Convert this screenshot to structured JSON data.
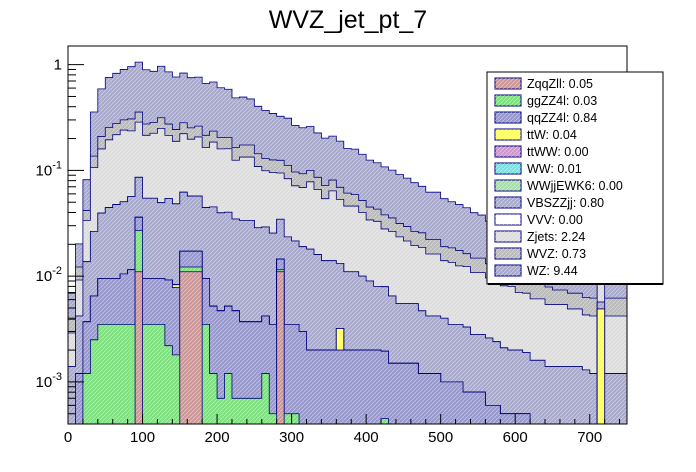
{
  "chart_data": {
    "type": "bar",
    "title": "WVZ_jet_pt_7",
    "xlabel": "",
    "ylabel": "",
    "stacked": true,
    "log_y": true,
    "grid": false,
    "legend_position": "top-right",
    "xlim": [
      0,
      750
    ],
    "ylim": [
      0.0004,
      1.5
    ],
    "bin_width": 10,
    "x_ticks": [
      0,
      100,
      200,
      300,
      400,
      500,
      600,
      700
    ],
    "x_tick_labels": [
      "0",
      "100",
      "200",
      "300",
      "400",
      "500",
      "600",
      "700"
    ],
    "y_ticks": [
      0.001,
      0.01,
      0.1,
      1
    ],
    "y_tick_labels": [
      "10^-3",
      "10^-2",
      "10^-1",
      "1"
    ],
    "legend": [
      {
        "name": "ZqqZll",
        "label": "ZqqZll: 0.05",
        "color": "#cc9999"
      },
      {
        "name": "ggZZ4l",
        "label": "ggZZ4l: 0.03",
        "color": "#80e080"
      },
      {
        "name": "qqZZ4l",
        "label": "qqZZ4l: 0.84",
        "color": "#9999cc"
      },
      {
        "name": "ttW",
        "label": "ttW: 0.04",
        "color": "#ffff66"
      },
      {
        "name": "ttWW",
        "label": "ttWW: 0.00",
        "color": "#cc99cc"
      },
      {
        "name": "WW",
        "label": "WW: 0.01",
        "color": "#80e0e0"
      },
      {
        "name": "WWjjEWK6",
        "label": "WWjjEWK6: 0.00",
        "color": "#aaddaa"
      },
      {
        "name": "VBSZZjj",
        "label": "VBSZZjj: 0.80",
        "color": "#aaaacc"
      },
      {
        "name": "VVV",
        "label": "VVV: 0.00",
        "color": "#ffffff"
      },
      {
        "name": "Zjets",
        "label": "Zjets: 2.24",
        "color": "#dddddd"
      },
      {
        "name": "WVZ",
        "label": "WVZ: 0.73",
        "color": "#bbbbbb"
      },
      {
        "name": "WZ",
        "label": "WZ: 9.44",
        "color": "#aaaacc"
      }
    ],
    "bin_edges_start": 0,
    "series": [
      {
        "name": "ZqqZll",
        "color": "#cc9999",
        "values": [
          0,
          0,
          0,
          0,
          0,
          0,
          0,
          0,
          0,
          0.011,
          0,
          0,
          0,
          0,
          0,
          0.011,
          0.011,
          0.011,
          0,
          0,
          0,
          0,
          0,
          0,
          0,
          0,
          0,
          0,
          0.011,
          0,
          0,
          0,
          0,
          0,
          0,
          0,
          0,
          0,
          0,
          0,
          0,
          0,
          0,
          0,
          0,
          0,
          0,
          0,
          0,
          0,
          0,
          0,
          0,
          0,
          0,
          0,
          0,
          0,
          0,
          0,
          0,
          0,
          0,
          0,
          0,
          0,
          0,
          0,
          0,
          0,
          0,
          0,
          0,
          0,
          0
        ]
      },
      {
        "name": "ggZZ4l",
        "color": "#80e080",
        "values": [
          0,
          0,
          0.0012,
          0.0025,
          0.0035,
          0.0035,
          0.0035,
          0.0035,
          0.0035,
          0.016,
          0.0035,
          0.0035,
          0.0035,
          0.0022,
          0.0018,
          0.0012,
          0.0012,
          0.0012,
          0.0035,
          0.0012,
          0.0007,
          0.0012,
          0.0007,
          0.0007,
          0.0007,
          0.0007,
          0.0012,
          0.0005,
          0.0005,
          0.0005,
          0.0005,
          0,
          0,
          0,
          0,
          0,
          0,
          0,
          0,
          0,
          0,
          0,
          0.00045,
          0,
          0,
          0,
          0,
          0,
          0,
          0,
          0,
          0,
          0,
          0,
          0,
          0,
          0,
          0,
          0,
          0,
          0,
          0,
          0,
          0,
          0,
          0,
          0,
          0,
          0,
          0,
          0,
          0,
          0,
          0,
          0
        ]
      },
      {
        "name": "qqZZ4l",
        "color": "#9999cc",
        "values": [
          0.0004,
          0.0012,
          0.0025,
          0.004,
          0.006,
          0.006,
          0.006,
          0.007,
          0.008,
          0.009,
          0.006,
          0.006,
          0.006,
          0.007,
          0.006,
          0.005,
          0.005,
          0.005,
          0.006,
          0.004,
          0.004,
          0.004,
          0.004,
          0.003,
          0.003,
          0.003,
          0.003,
          0.003,
          0.003,
          0.003,
          0.003,
          0.003,
          0.002,
          0.002,
          0.002,
          0.002,
          0.002,
          0.002,
          0.002,
          0.002,
          0.002,
          0.002,
          0.0015,
          0.0015,
          0.0015,
          0.0015,
          0.0015,
          0.0012,
          0.0012,
          0.0012,
          0.001,
          0.001,
          0.001,
          0.0008,
          0.0008,
          0.0008,
          0.0006,
          0.0006,
          0.0005,
          0.0005,
          0.0005,
          0.0005,
          0.0004,
          0.0004,
          0.0004,
          0.0004,
          0.0004,
          0.0004,
          0.0004,
          0.0004,
          0.0004,
          0.0004,
          0.0004,
          0.0004,
          0.0004
        ]
      },
      {
        "name": "ttW",
        "color": "#ffff66",
        "values": [
          0,
          0,
          0,
          0,
          0,
          0,
          0,
          0,
          0,
          0,
          0,
          0,
          0,
          0,
          0.0005,
          0,
          0,
          0,
          0,
          0,
          0,
          0,
          0,
          0,
          0,
          0,
          0,
          0,
          0,
          0,
          0,
          0,
          0,
          0,
          0,
          0,
          0.0012,
          0,
          0,
          0,
          0,
          0,
          0,
          0,
          0,
          0,
          0,
          0,
          0,
          0,
          0,
          0,
          0,
          0,
          0,
          0,
          0,
          0,
          0,
          0,
          0,
          0,
          0,
          0,
          0,
          0,
          0,
          0,
          0,
          0,
          0,
          0.0045,
          0,
          0,
          0
        ]
      },
      {
        "name": "ttWW",
        "color": "#cc99cc",
        "values": [
          0,
          0,
          0,
          0,
          0,
          0,
          0,
          0,
          0,
          0,
          0,
          0,
          0,
          0,
          0,
          0,
          0,
          0,
          0,
          0,
          0,
          0,
          0,
          0,
          0,
          0,
          0,
          0,
          0,
          0,
          0,
          0,
          0,
          0,
          0,
          0,
          0,
          0,
          0,
          0,
          0,
          0,
          0,
          0,
          0,
          0,
          0,
          0,
          0,
          0,
          0,
          0,
          0,
          0,
          0,
          0,
          0,
          0,
          0,
          0,
          0,
          0,
          0,
          0,
          0,
          0,
          0,
          0,
          0,
          0,
          0,
          0,
          0,
          0,
          0
        ]
      },
      {
        "name": "WW",
        "color": "#80e0e0",
        "values": [
          0,
          0,
          0,
          0,
          0,
          0,
          0,
          0,
          0,
          0,
          0,
          0,
          0,
          0,
          0,
          0,
          0,
          0,
          0,
          0,
          0,
          0,
          0,
          0,
          0,
          0,
          0,
          0,
          0,
          0,
          0,
          0,
          0,
          0,
          0,
          0,
          0,
          0,
          0,
          0,
          0,
          0,
          0,
          0,
          0,
          0,
          0,
          0,
          0,
          0,
          0,
          0,
          0,
          0,
          0,
          0,
          0,
          0,
          0,
          0,
          0,
          0,
          0,
          0,
          0,
          0,
          0,
          0,
          0,
          0,
          0,
          0,
          0,
          0,
          0
        ]
      },
      {
        "name": "WWjjEWK6",
        "color": "#aaddaa",
        "values": [
          0,
          0,
          0,
          0,
          0,
          0,
          0,
          0,
          0,
          0,
          0,
          0,
          0,
          0,
          0,
          0,
          0,
          0,
          0,
          0,
          0,
          0,
          0,
          0,
          0,
          0,
          0,
          0,
          0,
          0,
          0,
          0,
          0,
          0,
          0,
          0,
          0,
          0,
          0,
          0,
          0,
          0,
          0,
          0,
          0,
          0,
          0,
          0,
          0,
          0,
          0,
          0,
          0,
          0,
          0,
          0,
          0,
          0,
          0,
          0,
          0,
          0,
          0,
          0,
          0,
          0,
          0,
          0,
          0,
          0,
          0,
          0,
          0,
          0,
          0
        ]
      },
      {
        "name": "VBSZZjj",
        "color": "#aaaacc",
        "values": [
          0.001,
          0.003,
          0.01,
          0.02,
          0.03,
          0.035,
          0.038,
          0.04,
          0.045,
          0.05,
          0.045,
          0.045,
          0.04,
          0.045,
          0.04,
          0.045,
          0.04,
          0.04,
          0.035,
          0.04,
          0.035,
          0.035,
          0.03,
          0.03,
          0.03,
          0.025,
          0.025,
          0.022,
          0.02,
          0.02,
          0.018,
          0.016,
          0.016,
          0.014,
          0.012,
          0.012,
          0.01,
          0.009,
          0.009,
          0.008,
          0.007,
          0.006,
          0.006,
          0.005,
          0.004,
          0.004,
          0.004,
          0.0035,
          0.003,
          0.003,
          0.003,
          0.0025,
          0.0025,
          0.0025,
          0.002,
          0.002,
          0.002,
          0.0018,
          0.0016,
          0.0015,
          0.0015,
          0.0014,
          0.0012,
          0.0012,
          0.001,
          0.001,
          0.001,
          0.001,
          0.001,
          0.0009,
          0.0008,
          0.0008,
          0.0008,
          0.0008,
          0.0008
        ]
      },
      {
        "name": "VVV",
        "color": "#ffffff",
        "values": [
          0,
          0,
          0,
          0,
          0,
          0,
          0,
          0,
          0,
          0,
          0,
          0,
          0,
          0,
          0,
          0,
          0,
          0,
          0,
          0,
          0,
          0,
          0,
          0,
          0,
          0,
          0,
          0,
          0,
          0,
          0,
          0,
          0,
          0,
          0,
          0,
          0,
          0,
          0,
          0,
          0,
          0,
          0,
          0,
          0,
          0,
          0,
          0,
          0,
          0,
          0,
          0,
          0,
          0,
          0,
          0,
          0,
          0,
          0,
          0,
          0,
          0,
          0,
          0,
          0,
          0,
          0,
          0,
          0,
          0,
          0,
          0,
          0,
          0,
          0
        ]
      },
      {
        "name": "Zjets",
        "color": "#dddddd",
        "values": [
          0.0015,
          0.005,
          0.02,
          0.08,
          0.12,
          0.15,
          0.17,
          0.19,
          0.18,
          0.2,
          0.16,
          0.17,
          0.2,
          0.16,
          0.14,
          0.16,
          0.14,
          0.15,
          0.12,
          0.14,
          0.12,
          0.12,
          0.09,
          0.1,
          0.1,
          0.08,
          0.07,
          0.07,
          0.06,
          0.06,
          0.05,
          0.05,
          0.06,
          0.05,
          0.04,
          0.05,
          0.04,
          0.035,
          0.035,
          0.03,
          0.025,
          0.025,
          0.02,
          0.02,
          0.018,
          0.016,
          0.014,
          0.014,
          0.012,
          0.012,
          0.01,
          0.01,
          0.009,
          0.009,
          0.008,
          0.008,
          0.007,
          0.007,
          0.006,
          0.006,
          0.005,
          0.005,
          0.0045,
          0.0045,
          0.004,
          0.004,
          0.004,
          0.0035,
          0.0035,
          0.003,
          0.003,
          0.003,
          0.003,
          0.003,
          0.003
        ]
      },
      {
        "name": "WVZ",
        "color": "#bbbbbb",
        "values": [
          0.001,
          0.003,
          0.008,
          0.03,
          0.05,
          0.06,
          0.06,
          0.06,
          0.07,
          0.07,
          0.06,
          0.06,
          0.065,
          0.06,
          0.055,
          0.06,
          0.055,
          0.055,
          0.05,
          0.05,
          0.045,
          0.045,
          0.04,
          0.04,
          0.04,
          0.035,
          0.03,
          0.03,
          0.03,
          0.028,
          0.025,
          0.024,
          0.022,
          0.02,
          0.018,
          0.017,
          0.016,
          0.015,
          0.013,
          0.012,
          0.011,
          0.01,
          0.01,
          0.009,
          0.008,
          0.008,
          0.007,
          0.007,
          0.006,
          0.006,
          0.005,
          0.005,
          0.005,
          0.004,
          0.004,
          0.004,
          0.0035,
          0.0035,
          0.003,
          0.003,
          0.003,
          0.003,
          0.0025,
          0.0025,
          0.0025,
          0.002,
          0.002,
          0.002,
          0.002,
          0.002,
          0.002,
          0.002,
          0.002,
          0.002,
          0.002
        ]
      },
      {
        "name": "WZ",
        "color": "#aaaacc",
        "values": [
          0.003,
          0.008,
          0.04,
          0.22,
          0.38,
          0.5,
          0.55,
          0.6,
          0.65,
          0.7,
          0.62,
          0.58,
          0.65,
          0.58,
          0.52,
          0.55,
          0.5,
          0.5,
          0.45,
          0.45,
          0.4,
          0.38,
          0.32,
          0.32,
          0.3,
          0.26,
          0.24,
          0.22,
          0.2,
          0.2,
          0.17,
          0.16,
          0.16,
          0.14,
          0.13,
          0.13,
          0.12,
          0.1,
          0.1,
          0.09,
          0.08,
          0.075,
          0.07,
          0.065,
          0.06,
          0.055,
          0.05,
          0.045,
          0.04,
          0.04,
          0.035,
          0.032,
          0.03,
          0.028,
          0.025,
          0.023,
          0.02,
          0.02,
          0.018,
          0.017,
          0.016,
          0.015,
          0.014,
          0.013,
          0.012,
          0.012,
          0.011,
          0.011,
          0.01,
          0.01,
          0.009,
          0.009,
          0.009,
          0.009,
          0.009
        ]
      }
    ]
  }
}
